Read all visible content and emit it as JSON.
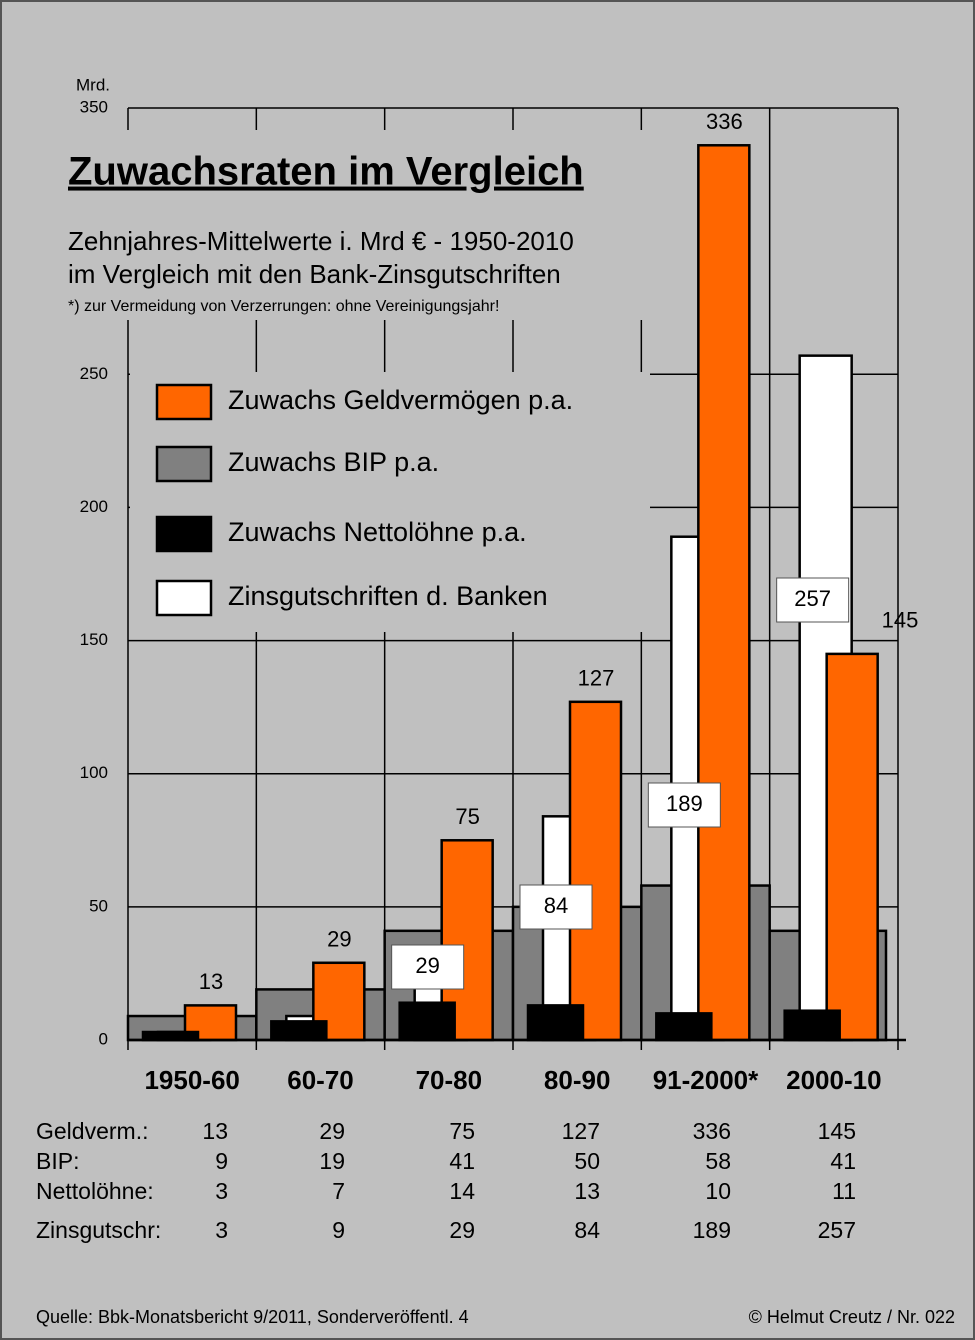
{
  "chart_data": {
    "type": "bar",
    "title": "Zuwachsraten im Vergleich",
    "subtitle": [
      "Zehnjahres-Mittelwerte i. Mrd € - 1950-2010",
      "im Vergleich mit den Bank-Zinsgutschriften"
    ],
    "note": "*) zur Vermeidung von Verzerrungen: ohne Vereinigungsjahr!",
    "y_label": "Mrd.",
    "categories": [
      "1950-60",
      "60-70",
      "70-80",
      "80-90",
      "91-2000*",
      "2000-10"
    ],
    "series": [
      {
        "name": "Zuwachs Geldvermögen p.a.",
        "row_label": "Geldverm.:",
        "color": "#ff6600",
        "values": [
          13,
          29,
          75,
          127,
          336,
          145
        ]
      },
      {
        "name": "Zuwachs BIP p.a.",
        "row_label": "BIP:",
        "color": "#808080",
        "values": [
          9,
          19,
          41,
          50,
          58,
          41
        ]
      },
      {
        "name": "Zuwachs Nettolöhne p.a.",
        "row_label": "Nettolöhne:",
        "color": "#000000",
        "values": [
          3,
          7,
          14,
          13,
          10,
          11
        ]
      },
      {
        "name": "Zinsgutschriften d. Banken",
        "row_label": "Zinsgutschr:",
        "color": "#ffffff",
        "values": [
          3,
          9,
          29,
          84,
          189,
          257
        ]
      }
    ],
    "ylim": [
      0,
      350
    ],
    "yticks": [
      0,
      50,
      100,
      150,
      200,
      250,
      350
    ],
    "grid": true,
    "source": "Quelle: Bbk-Monatsbericht 9/2011, Sonderveröffentl. 4",
    "credit": "© Helmut Creutz  /  Nr. 022"
  }
}
